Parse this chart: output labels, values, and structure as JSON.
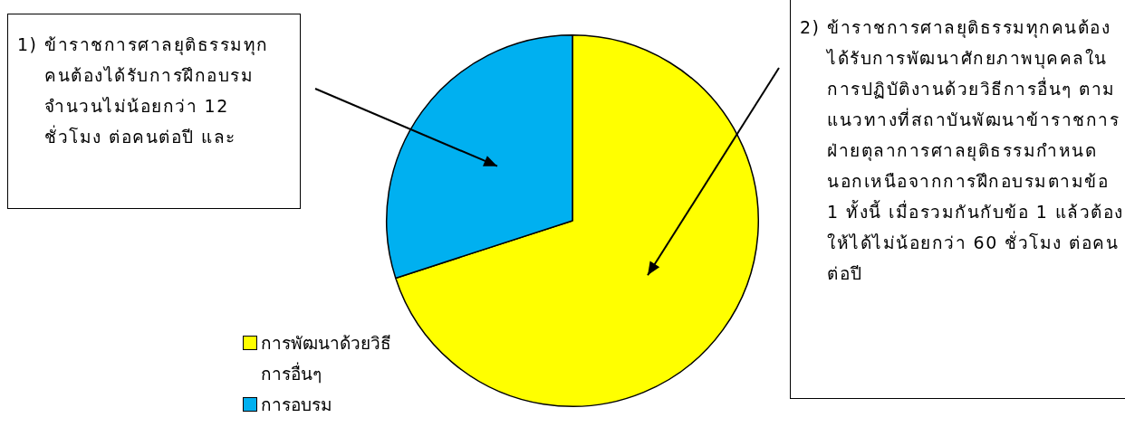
{
  "chart_data": {
    "type": "pie",
    "categories": [
      "การพัฒนาด้วยวิธีการอื่นๆ",
      "การอบรม"
    ],
    "values": [
      70,
      30
    ],
    "colors": [
      "#ffff00",
      "#00b0f0"
    ],
    "legend": "bottom left",
    "annotations": [
      {
        "text": "1) ข้าราชการศาลยุติธรรมทุกคนต้องได้รับการฝึกอบรมจำนวนไม่น้อยกว่า 12 ชั่วโมง ต่อคนต่อปี และ",
        "x": "การอบรม"
      },
      {
        "text": "2) ข้าราชการศาลยุติธรรมทุกคนต้องได้รับการพัฒนาศักยภาพบุคคลในการปฏิบัติงานด้วยวิธีการอื่นๆ ตามแนวทางที่สถาบันพัฒนาข้าราชการฝ่ายตุลาการศาลยุติธรรมกำหนดนอกเหนือจากการฝึกอบรมตามข้อ 1 ทั้งนี้ เมื่อรวมกันกับข้อ 1 แล้วต้องให้ได้ไม่น้อยกว่า 60 ชั่วโมง ต่อคนต่อปี",
        "x": "การพัฒนาด้วยวิธีการอื่นๆ"
      }
    ]
  }
}
